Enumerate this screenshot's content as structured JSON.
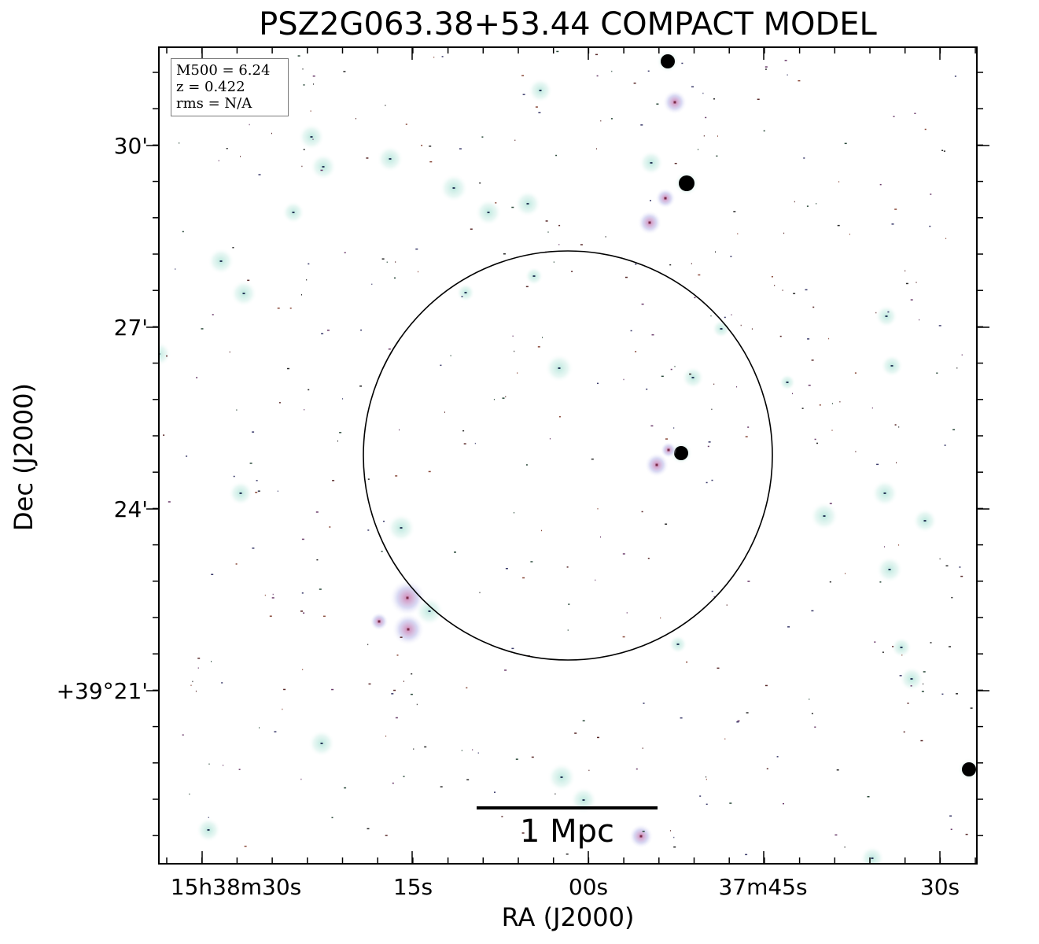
{
  "title": "PSZ2G063.38+53.44 COMPACT MODEL",
  "legend": {
    "m500": "M500 = 6.24",
    "z": "z = 0.422",
    "rms": "rms = N/A"
  },
  "axes": {
    "xlabel": "RA (J2000)",
    "ylabel": "Dec (J2000)",
    "xticks": [
      "15h38m30s",
      "15s",
      "00s",
      "37m45s",
      "30s"
    ],
    "yticks": [
      "30'",
      "27'",
      "24'",
      "+39°21'"
    ]
  },
  "scalebar": {
    "label": "1 Mpc"
  },
  "colors": {
    "frame": "#000000",
    "legend_border": "#7a7a7a",
    "source_glow": "#cfeee6",
    "source_red": "#c05050",
    "source_blue": "#4a5aa0"
  }
}
